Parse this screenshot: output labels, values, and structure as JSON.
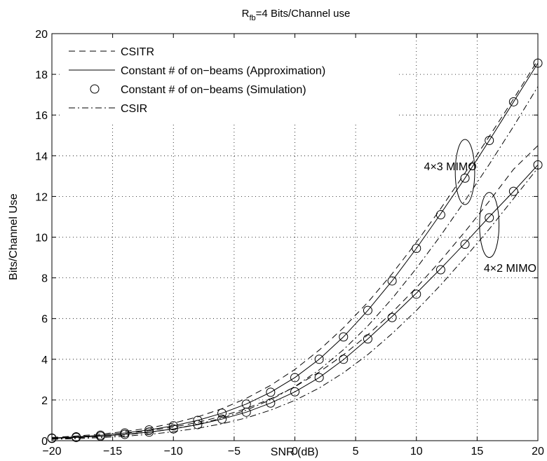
{
  "chart_data": {
    "type": "line",
    "title": "R",
    "title_sub": "fb",
    "title_rest": "=4 Bits/Channel use",
    "xlabel": "SNR (dB)",
    "ylabel": "Bits/Channel Use",
    "xlim": [
      -20,
      20
    ],
    "ylim": [
      0,
      20
    ],
    "xticks": [
      -20,
      -15,
      -10,
      -5,
      0,
      5,
      10,
      15,
      20
    ],
    "yticks": [
      0,
      2,
      4,
      6,
      8,
      10,
      12,
      14,
      16,
      18,
      20
    ],
    "grid": true,
    "legend_position": "top-left",
    "legend": [
      {
        "label": "CSITR",
        "style": "dashed"
      },
      {
        "label": "Constant # of on−beams (Approximation)",
        "style": "solid"
      },
      {
        "label": "Constant # of on−beams (Simulation)",
        "style": "circle"
      },
      {
        "label": "CSIR",
        "style": "dashdot"
      }
    ],
    "annotations": [
      {
        "text": "4×3 MIMO",
        "at": [
          16,
          13.5
        ]
      },
      {
        "text": "4×2 MIMO",
        "at": [
          20,
          8.5
        ]
      }
    ],
    "ellipses": [
      {
        "center": [
          14,
          13.2
        ],
        "rx": 0.8,
        "ry": 1.6
      },
      {
        "center": [
          16,
          10.6
        ],
        "rx": 0.8,
        "ry": 1.6
      }
    ],
    "x": [
      -20,
      -18,
      -16,
      -14,
      -12,
      -10,
      -8,
      -6,
      -4,
      -2,
      0,
      2,
      4,
      6,
      8,
      10,
      12,
      14,
      16,
      18,
      20
    ],
    "series": [
      {
        "group": "4x3",
        "kind": "CSITR",
        "style": "dashed",
        "values": [
          0.16,
          0.23,
          0.32,
          0.45,
          0.62,
          0.86,
          1.17,
          1.57,
          2.08,
          2.72,
          3.5,
          4.45,
          5.55,
          6.8,
          8.2,
          9.75,
          11.4,
          13.15,
          14.95,
          16.8,
          18.7
        ]
      },
      {
        "group": "4x3",
        "kind": "Approximation",
        "style": "solid",
        "values": [
          0.13,
          0.19,
          0.27,
          0.38,
          0.53,
          0.73,
          1.0,
          1.35,
          1.8,
          2.38,
          3.1,
          4.0,
          5.1,
          6.4,
          7.85,
          9.45,
          11.15,
          12.9,
          14.75,
          16.65,
          18.55
        ]
      },
      {
        "group": "4x3",
        "kind": "Simulation",
        "style": "circle",
        "values": [
          0.13,
          0.19,
          0.27,
          0.38,
          0.53,
          0.73,
          1.0,
          1.35,
          1.8,
          2.38,
          3.1,
          4.0,
          5.1,
          6.4,
          7.85,
          9.45,
          11.1,
          12.9,
          14.75,
          16.65,
          18.55
        ]
      },
      {
        "group": "4x3",
        "kind": "CSIR",
        "style": "dashdot",
        "values": [
          0.09,
          0.14,
          0.2,
          0.29,
          0.41,
          0.58,
          0.81,
          1.11,
          1.5,
          2.01,
          2.66,
          3.48,
          4.47,
          5.64,
          6.98,
          8.47,
          10.08,
          11.79,
          13.58,
          15.45,
          17.4
        ]
      },
      {
        "group": "4x2",
        "kind": "CSITR",
        "style": "dashed",
        "values": [
          0.13,
          0.19,
          0.26,
          0.36,
          0.49,
          0.67,
          0.9,
          1.2,
          1.58,
          2.06,
          2.65,
          3.37,
          4.22,
          5.2,
          6.3,
          7.52,
          8.85,
          10.27,
          11.77,
          13.34,
          14.5
        ]
      },
      {
        "group": "4x2",
        "kind": "Approximation",
        "style": "solid",
        "values": [
          0.11,
          0.16,
          0.22,
          0.31,
          0.42,
          0.58,
          0.79,
          1.06,
          1.4,
          1.85,
          2.4,
          3.1,
          3.98,
          5.0,
          6.1,
          7.25,
          8.45,
          9.7,
          11.0,
          12.25,
          13.55
        ]
      },
      {
        "group": "4x2",
        "kind": "Simulation",
        "style": "circle",
        "values": [
          0.11,
          0.16,
          0.22,
          0.31,
          0.42,
          0.58,
          0.79,
          1.06,
          1.4,
          1.85,
          2.4,
          3.1,
          4.0,
          5.0,
          6.05,
          7.2,
          8.4,
          9.65,
          10.95,
          12.25,
          13.55
        ]
      },
      {
        "group": "4x2",
        "kind": "CSIR",
        "style": "dashdot",
        "values": [
          0.07,
          0.1,
          0.15,
          0.22,
          0.31,
          0.44,
          0.61,
          0.83,
          1.12,
          1.5,
          1.98,
          2.59,
          3.34,
          4.23,
          5.26,
          6.4,
          7.65,
          8.99,
          10.4,
          11.9,
          13.4
        ]
      }
    ]
  }
}
